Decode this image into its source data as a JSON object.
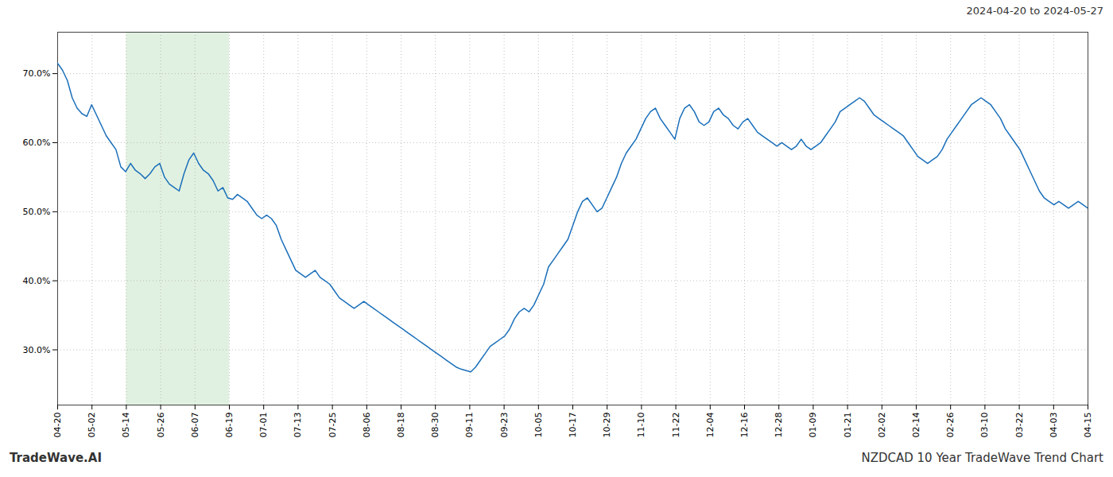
{
  "chart_data": {
    "type": "line",
    "title": "2024-04-20 to 2024-05-27",
    "annotations": [
      "TradeWave.AI",
      "NZDCAD 10 Year TradeWave Trend Chart"
    ],
    "color": "#1a6fba",
    "grid": true,
    "xlim": [
      0,
      212
    ],
    "xticks": [
      {
        "value": 0,
        "label": "04-20"
      },
      {
        "value": 7.066666666666666,
        "label": "05-02"
      },
      {
        "value": 14.133333333333333,
        "label": "05-14"
      },
      {
        "value": 21.2,
        "label": "05-26"
      },
      {
        "value": 28.266666666666666,
        "label": "06-07"
      },
      {
        "value": 35.33333333333333,
        "label": "06-19"
      },
      {
        "value": 42.4,
        "label": "07-01"
      },
      {
        "value": 49.46666666666667,
        "label": "07-13"
      },
      {
        "value": 56.53333333333333,
        "label": "07-25"
      },
      {
        "value": 63.6,
        "label": "08-06"
      },
      {
        "value": 70.66666666666667,
        "label": "08-18"
      },
      {
        "value": 77.73333333333333,
        "label": "08-30"
      },
      {
        "value": 84.8,
        "label": "09-11"
      },
      {
        "value": 91.86666666666666,
        "label": "09-23"
      },
      {
        "value": 98.93333333333334,
        "label": "10-05"
      },
      {
        "value": 106.0,
        "label": "10-17"
      },
      {
        "value": 113.06666666666666,
        "label": "10-29"
      },
      {
        "value": 120.13333333333334,
        "label": "11-10"
      },
      {
        "value": 127.2,
        "label": "11-22"
      },
      {
        "value": 134.26666666666668,
        "label": "12-04"
      },
      {
        "value": 141.33333333333334,
        "label": "12-16"
      },
      {
        "value": 148.4,
        "label": "12-28"
      },
      {
        "value": 155.46666666666667,
        "label": "01-09"
      },
      {
        "value": 162.53333333333333,
        "label": "01-21"
      },
      {
        "value": 169.6,
        "label": "02-02"
      },
      {
        "value": 176.66666666666666,
        "label": "02-14"
      },
      {
        "value": 183.73333333333335,
        "label": "02-26"
      },
      {
        "value": 190.8,
        "label": "03-10"
      },
      {
        "value": 197.86666666666667,
        "label": "03-22"
      },
      {
        "value": 204.93333333333334,
        "label": "04-03"
      },
      {
        "value": 212.0,
        "label": "04-15"
      }
    ],
    "ylim": [
      22,
      76
    ],
    "yticks": [
      {
        "value": 30.0,
        "label": "30.0%"
      },
      {
        "value": 40.0,
        "label": "40.0%"
      },
      {
        "value": 50.0,
        "label": "50.0%"
      },
      {
        "value": 60.0,
        "label": "60.0%"
      },
      {
        "value": 70.0,
        "label": "70.0%"
      }
    ],
    "highlight": {
      "from": "05-14",
      "to": "06-19",
      "color": "#c8e6c8"
    },
    "values": [
      71.5,
      70.5,
      69.0,
      66.5,
      65.0,
      64.2,
      63.8,
      65.5,
      64.0,
      62.5,
      61.0,
      60.0,
      59.0,
      56.5,
      55.8,
      57.0,
      56.0,
      55.5,
      54.8,
      55.5,
      56.5,
      57.0,
      55.0,
      54.0,
      53.5,
      53.0,
      55.5,
      57.5,
      58.5,
      57.0,
      56.0,
      55.5,
      54.5,
      53.0,
      53.5,
      52.0,
      51.8,
      52.5,
      52.0,
      51.5,
      50.5,
      49.5,
      49.0,
      49.5,
      49.0,
      48.0,
      46.0,
      44.5,
      43.0,
      41.5,
      41.0,
      40.5,
      41.0,
      41.5,
      40.5,
      40.0,
      39.5,
      38.5,
      37.5,
      37.0,
      36.5,
      36.0,
      36.5,
      37.0,
      36.5,
      36.0,
      35.5,
      35.0,
      34.5,
      34.0,
      33.5,
      33.0,
      32.5,
      32.0,
      31.5,
      31.0,
      30.5,
      30.0,
      29.5,
      29.0,
      28.5,
      28.0,
      27.5,
      27.2,
      27.0,
      26.8,
      27.5,
      28.5,
      29.5,
      30.5,
      31.0,
      31.5,
      32.0,
      33.0,
      34.5,
      35.5,
      36.0,
      35.5,
      36.5,
      38.0,
      39.5,
      42.0,
      43.0,
      44.0,
      45.0,
      46.0,
      48.0,
      50.0,
      51.5,
      52.0,
      51.0,
      50.0,
      50.5,
      52.0,
      53.5,
      55.0,
      57.0,
      58.5,
      59.5,
      60.5,
      62.0,
      63.5,
      64.5,
      65.0,
      63.5,
      62.5,
      61.5,
      60.5,
      63.5,
      65.0,
      65.5,
      64.5,
      63.0,
      62.5,
      63.0,
      64.5,
      65.0,
      64.0,
      63.5,
      62.5,
      62.0,
      63.0,
      63.5,
      62.5,
      61.5,
      61.0,
      60.5,
      60.0,
      59.5,
      60.0,
      59.5,
      59.0,
      59.5,
      60.5,
      59.5,
      59.0,
      59.5,
      60.0,
      61.0,
      62.0,
      63.0,
      64.5,
      65.0,
      65.5,
      66.0,
      66.5,
      66.0,
      65.0,
      64.0,
      63.5,
      63.0,
      62.5,
      62.0,
      61.5,
      61.0,
      60.0,
      59.0,
      58.0,
      57.5,
      57.0,
      57.5,
      58.0,
      59.0,
      60.5,
      61.5,
      62.5,
      63.5,
      64.5,
      65.5,
      66.0,
      66.5,
      66.0,
      65.5,
      64.5,
      63.5,
      62.0,
      61.0,
      60.0,
      59.0,
      57.5,
      56.0,
      54.5,
      53.0,
      52.0,
      51.5,
      51.0,
      51.5,
      51.0,
      50.5,
      51.0,
      51.5,
      51.0,
      50.5
    ]
  }
}
